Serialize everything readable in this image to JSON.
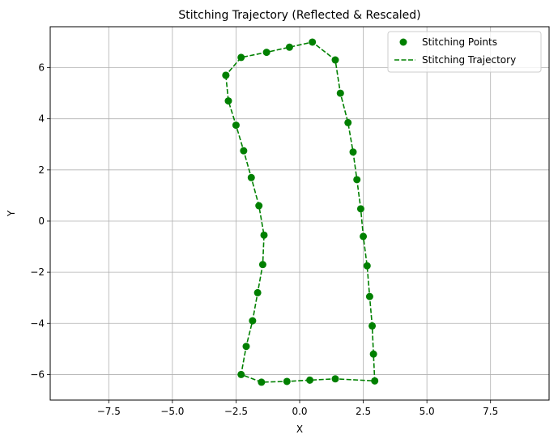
{
  "chart_data": {
    "type": "line",
    "title": "Stitching Trajectory (Reflected & Rescaled)",
    "xlabel": "X",
    "ylabel": "Y",
    "xlim": [
      -9.8,
      9.8
    ],
    "ylim": [
      -7.0,
      7.6
    ],
    "xticks": [
      -7.5,
      -5.0,
      -2.5,
      0.0,
      2.5,
      5.0,
      7.5
    ],
    "xtick_labels": [
      "−7.5",
      "−5.0",
      "−2.5",
      "0.0",
      "2.5",
      "5.0",
      "7.5"
    ],
    "yticks": [
      -6,
      -4,
      -2,
      0,
      2,
      4,
      6
    ],
    "ytick_labels": [
      "−6",
      "−4",
      "−2",
      "0",
      "2",
      "4",
      "6"
    ],
    "grid": true,
    "legend_position": "top-right",
    "series": [
      {
        "name": "Stitching Points",
        "kind": "scatter",
        "color": "#008000",
        "x": [
          -2.9,
          -2.8,
          -2.5,
          -2.2,
          -1.9,
          -1.6,
          -1.4,
          -1.45,
          -1.65,
          -1.85,
          -2.1,
          -2.3,
          -1.5,
          -0.5,
          0.4,
          1.4,
          2.95,
          2.9,
          2.85,
          2.75,
          2.65,
          2.5,
          2.4,
          2.25,
          2.1,
          1.9,
          1.6,
          1.4,
          0.5,
          -0.4,
          -1.3,
          -2.3,
          -2.9
        ],
        "y": [
          5.7,
          4.7,
          3.75,
          2.75,
          1.7,
          0.6,
          -0.55,
          -1.7,
          -2.8,
          -3.9,
          -4.9,
          -6.0,
          -6.3,
          -6.27,
          -6.22,
          -6.17,
          -6.25,
          -5.2,
          -4.1,
          -2.95,
          -1.75,
          -0.6,
          0.48,
          1.62,
          2.7,
          3.85,
          5.0,
          6.3,
          7.0,
          6.8,
          6.6,
          6.4,
          5.7
        ]
      },
      {
        "name": "Stitching Trajectory",
        "kind": "line",
        "style": "dashed",
        "color": "#008000",
        "x": [
          -2.9,
          -2.8,
          -2.5,
          -2.2,
          -1.9,
          -1.6,
          -1.4,
          -1.45,
          -1.65,
          -1.85,
          -2.1,
          -2.3,
          -1.5,
          -0.5,
          0.4,
          1.4,
          2.95,
          2.9,
          2.85,
          2.75,
          2.65,
          2.5,
          2.4,
          2.25,
          2.1,
          1.9,
          1.6,
          1.4,
          0.5,
          -0.4,
          -1.3,
          -2.3,
          -2.9
        ],
        "y": [
          5.7,
          4.7,
          3.75,
          2.75,
          1.7,
          0.6,
          -0.55,
          -1.7,
          -2.8,
          -3.9,
          -4.9,
          -6.0,
          -6.3,
          -6.27,
          -6.22,
          -6.17,
          -6.25,
          -5.2,
          -4.1,
          -2.95,
          -1.75,
          -0.6,
          0.48,
          1.62,
          2.7,
          3.85,
          5.0,
          6.3,
          7.0,
          6.8,
          6.6,
          6.4,
          5.7
        ]
      }
    ]
  }
}
